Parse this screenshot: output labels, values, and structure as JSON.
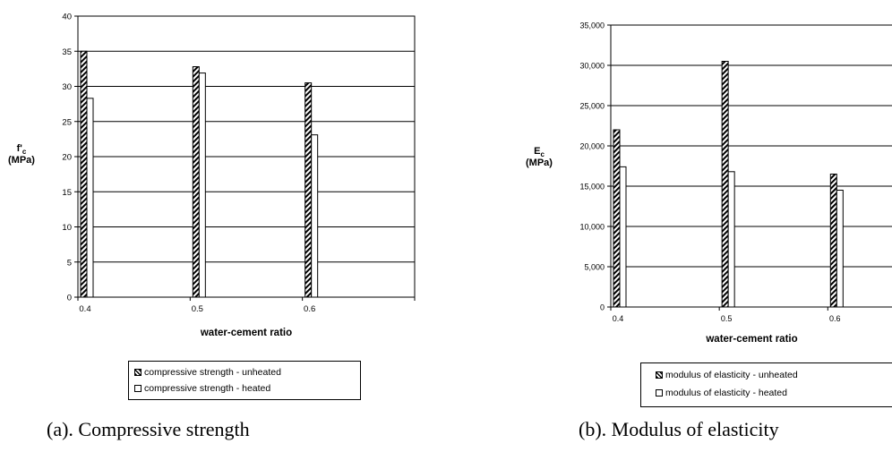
{
  "chart_data": [
    {
      "type": "bar",
      "caption": "(a). Compressive strength",
      "ylabel_main": "f'",
      "ylabel_sub": "c",
      "ylabel_unit": "(MPa)",
      "xlabel": "water-cement ratio",
      "categories": [
        "0.4",
        "0.5",
        "0.6"
      ],
      "ylim": [
        0,
        40
      ],
      "yticks": [
        "0",
        "5",
        "10",
        "15",
        "20",
        "25",
        "30",
        "35",
        "40"
      ],
      "grid": true,
      "legend_position": "bottom",
      "series": [
        {
          "name": "compressive strength - unheated",
          "values": [
            35.0,
            32.8,
            30.5
          ],
          "pattern": "hatched"
        },
        {
          "name": "compressive strength - heated",
          "values": [
            28.3,
            31.9,
            23.1
          ],
          "pattern": "white"
        }
      ]
    },
    {
      "type": "bar",
      "caption": "(b). Modulus of elasticity",
      "ylabel_main": "E",
      "ylabel_sub": "c",
      "ylabel_unit": "(MPa)",
      "xlabel": "water-cement ratio",
      "categories": [
        "0.4",
        "0.5",
        "0.6"
      ],
      "ylim": [
        0,
        35000
      ],
      "yticks": [
        "0",
        "5,000",
        "10,000",
        "15,000",
        "20,000",
        "25,000",
        "30,000",
        "35,000"
      ],
      "grid": true,
      "legend_position": "bottom",
      "series": [
        {
          "name": "modulus of elasticity - unheated",
          "values": [
            22000,
            30500,
            16500
          ],
          "pattern": "hatched"
        },
        {
          "name": "modulus of elasticity - heated",
          "values": [
            17400,
            16800,
            14500
          ],
          "pattern": "white"
        }
      ]
    }
  ]
}
